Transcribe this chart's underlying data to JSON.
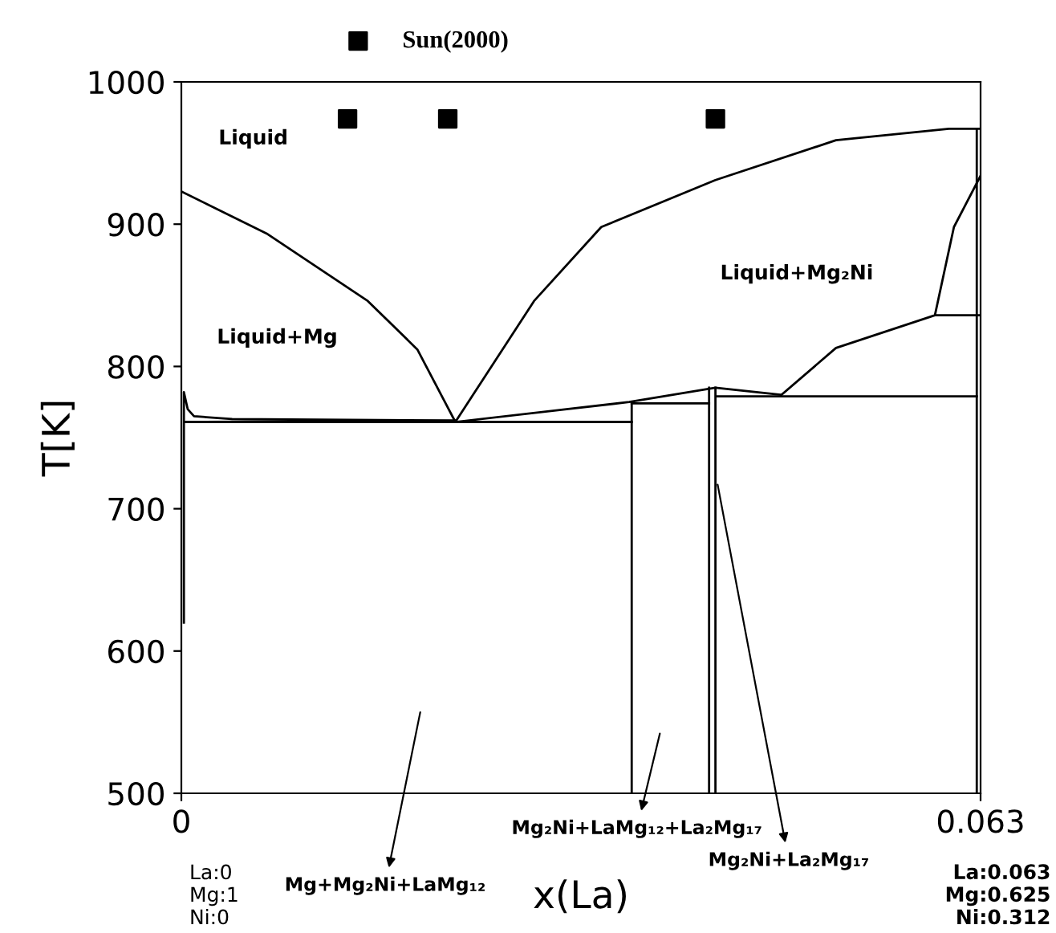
{
  "chart_data": {
    "type": "line",
    "xlabel": "x(La)",
    "ylabel": "T[K]",
    "xlim": [
      0,
      0.063
    ],
    "xticks": [
      0,
      0.063
    ],
    "ylim": [
      500,
      1000
    ],
    "yticks": [
      500,
      600,
      700,
      800,
      900,
      1000
    ],
    "grid": false,
    "legend": "top",
    "series": [
      {
        "name": "Sun(2000)",
        "type": "scatter",
        "marker": "square",
        "color": "#000000",
        "x": [
          0.0131,
          0.021,
          0.0421
        ],
        "values": [
          974,
          974,
          974
        ]
      },
      {
        "color": "#000000",
        "x": [
          0,
          0.0068,
          0.0147,
          0.0186,
          0.0216,
          0.0278,
          0.0331,
          0.0421,
          0.0516,
          0.0605,
          0.063
        ],
        "values": [
          923,
          893,
          846,
          812,
          761,
          846,
          898,
          931,
          959,
          967,
          967
        ]
      },
      {
        "color": "#000000",
        "x": [
          0.0473,
          0.0516,
          0.0594,
          0.063,
          0.0594,
          0.0609,
          0.063
        ],
        "values": [
          780,
          813,
          836,
          836,
          836,
          898,
          934
        ]
      },
      {
        "color": "#000000",
        "x": [
          0.0422,
          0.0627
        ],
        "values": [
          779,
          779
        ]
      },
      {
        "color": "#000000",
        "x": [
          0.0216,
          0.0353,
          0.0421,
          0.0473
        ],
        "values": [
          761,
          775,
          785,
          780
        ]
      },
      {
        "color": "#000000",
        "x": [
          0.0355,
          0.0416
        ],
        "values": [
          774,
          774
        ]
      },
      {
        "color": "#000000",
        "x": [
          0.0002,
          0.0002,
          0.0005,
          0.001,
          0.004,
          0.0216,
          0.0003,
          0.0355
        ],
        "values": [
          620,
          782,
          770,
          765,
          763,
          762,
          761,
          761
        ]
      },
      {
        "color": "#000000",
        "x": [
          0.0355,
          0.0355
        ],
        "values": [
          774,
          500
        ]
      },
      {
        "color": "#000000",
        "x": [
          0.0416,
          0.0416
        ],
        "values": [
          785,
          500
        ]
      },
      {
        "color": "#000000",
        "x": [
          0.0421,
          0.0421
        ],
        "values": [
          785,
          500
        ]
      },
      {
        "color": "#000000",
        "x": [
          0.0627,
          0.0627
        ],
        "values": [
          967,
          500
        ]
      }
    ],
    "annotations": [
      "Liquid",
      "Liquid+Mg",
      "Liquid+Mg₂Ni",
      "Mg+Mg₂Ni+LaMg₁₂",
      "Mg₂Ni+LaMg₁₂+La₂Mg₁₇",
      "Mg₂Ni+La₂Mg₁₇",
      "La:0\nMg:1\nNi:0",
      "La:0.063\nMg:0.625\nNi:0.312"
    ]
  }
}
